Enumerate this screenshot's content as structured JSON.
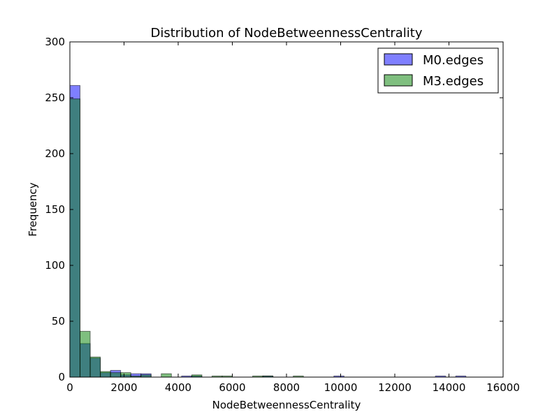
{
  "chart_data": {
    "type": "bar",
    "title": "Distribution of NodeBetweennessCentrality",
    "xlabel": "NodeBetweennessCentrality",
    "ylabel": "Frequency",
    "xlim": [
      0,
      16000
    ],
    "ylim": [
      0,
      300
    ],
    "xticks": [
      "0",
      "2000",
      "4000",
      "6000",
      "8000",
      "10000",
      "12000",
      "14000",
      "16000"
    ],
    "yticks": [
      "0",
      "50",
      "100",
      "150",
      "200",
      "250",
      "300"
    ],
    "bin_width": 375,
    "legend_position": "top-right",
    "grid": false,
    "series": [
      {
        "name": "M0.edges",
        "color": "#0000ff",
        "bins": [
          {
            "start": 0,
            "count": 261
          },
          {
            "start": 375,
            "count": 30
          },
          {
            "start": 750,
            "count": 17
          },
          {
            "start": 1125,
            "count": 4
          },
          {
            "start": 1500,
            "count": 6
          },
          {
            "start": 1875,
            "count": 2
          },
          {
            "start": 2250,
            "count": 3
          },
          {
            "start": 2625,
            "count": 3
          },
          {
            "start": 4125,
            "count": 1
          },
          {
            "start": 4500,
            "count": 1
          },
          {
            "start": 7125,
            "count": 1
          },
          {
            "start": 9750,
            "count": 1
          },
          {
            "start": 13500,
            "count": 1
          },
          {
            "start": 14250,
            "count": 1
          }
        ]
      },
      {
        "name": "M3.edges",
        "color": "#008000",
        "bins": [
          {
            "start": 0,
            "count": 249
          },
          {
            "start": 375,
            "count": 41
          },
          {
            "start": 750,
            "count": 18
          },
          {
            "start": 1125,
            "count": 5
          },
          {
            "start": 1500,
            "count": 4
          },
          {
            "start": 1875,
            "count": 4
          },
          {
            "start": 2250,
            "count": 1
          },
          {
            "start": 2625,
            "count": 2
          },
          {
            "start": 3375,
            "count": 3
          },
          {
            "start": 4500,
            "count": 2
          },
          {
            "start": 5250,
            "count": 1
          },
          {
            "start": 5625,
            "count": 1
          },
          {
            "start": 6750,
            "count": 1
          },
          {
            "start": 7125,
            "count": 1
          },
          {
            "start": 8250,
            "count": 1
          }
        ]
      }
    ]
  }
}
